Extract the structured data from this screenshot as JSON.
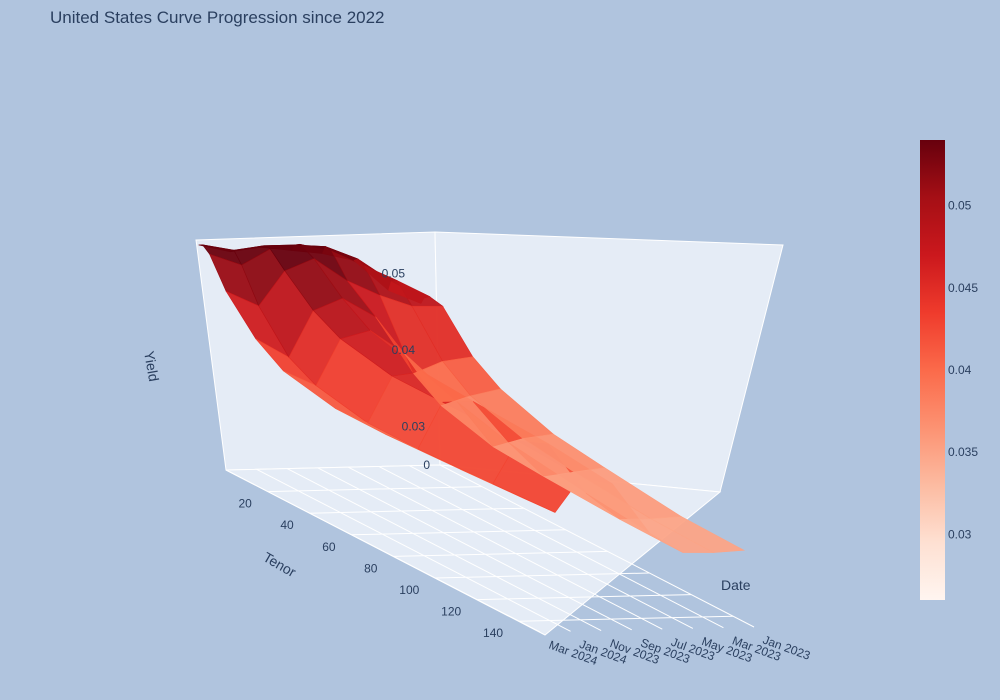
{
  "chart_data": {
    "type": "surface",
    "title": "United States Curve Progression since 2022",
    "xlabel": "Tenor",
    "ylabel": "Date",
    "zlabel": "Yield",
    "colorscale": "Reds",
    "colors": {
      "background": "#b0c4de",
      "scene": "#e5ecf6",
      "text": "#2a3f5f"
    },
    "xlim": [
      0,
      150
    ],
    "zlim": [
      0.025,
      0.055
    ],
    "x_ticks": [
      20,
      40,
      60,
      80,
      100,
      120,
      140
    ],
    "z_ticks": [
      0,
      0.03,
      0.04,
      0.05
    ],
    "z_tick_labels": [
      "0",
      "0.03",
      "0.04",
      "0.05"
    ],
    "date_ticks": [
      "Jan 2023",
      "Mar 2023",
      "May 2023",
      "Jul 2023",
      "Sep 2023",
      "Nov 2023",
      "Jan 2024",
      "Mar 2024"
    ],
    "colorbar": {
      "range": [
        0.026,
        0.054
      ],
      "ticks": [
        0.03,
        0.035,
        0.04,
        0.045,
        0.05
      ],
      "tick_labels": [
        "0.03",
        "0.035",
        "0.04",
        "0.045",
        "0.05"
      ]
    },
    "surface": {
      "tenors": [
        1,
        3,
        6,
        12,
        24,
        36,
        60,
        84,
        120,
        150
      ],
      "dates": [
        "Jan 2023",
        "Mar 2023",
        "May 2023",
        "Jul 2023",
        "Sep 2023",
        "Nov 2023",
        "Jan 2024",
        "Mar 2024"
      ],
      "yields": [
        [
          0.0462,
          0.0472,
          0.0478,
          0.0474,
          0.0425,
          0.04,
          0.0375,
          0.0365,
          0.0352,
          0.035
        ],
        [
          0.048,
          0.0495,
          0.05,
          0.0475,
          0.042,
          0.0392,
          0.037,
          0.036,
          0.035,
          0.0348
        ],
        [
          0.052,
          0.0525,
          0.052,
          0.049,
          0.0405,
          0.038,
          0.036,
          0.0355,
          0.035,
          0.0349
        ],
        [
          0.053,
          0.0542,
          0.054,
          0.051,
          0.048,
          0.045,
          0.042,
          0.04,
          0.0385,
          0.0375
        ],
        [
          0.0535,
          0.0545,
          0.055,
          0.054,
          0.0505,
          0.048,
          0.046,
          0.0455,
          0.045,
          0.044
        ],
        [
          0.054,
          0.0545,
          0.0545,
          0.0525,
          0.049,
          0.047,
          0.0455,
          0.0455,
          0.0455,
          0.045
        ],
        [
          0.0535,
          0.054,
          0.0525,
          0.048,
          0.043,
          0.041,
          0.0395,
          0.0395,
          0.04,
          0.0405
        ],
        [
          0.0545,
          0.0548,
          0.054,
          0.05,
          0.0455,
          0.043,
          0.0415,
          0.0415,
          0.042,
          0.0425
        ]
      ]
    }
  }
}
